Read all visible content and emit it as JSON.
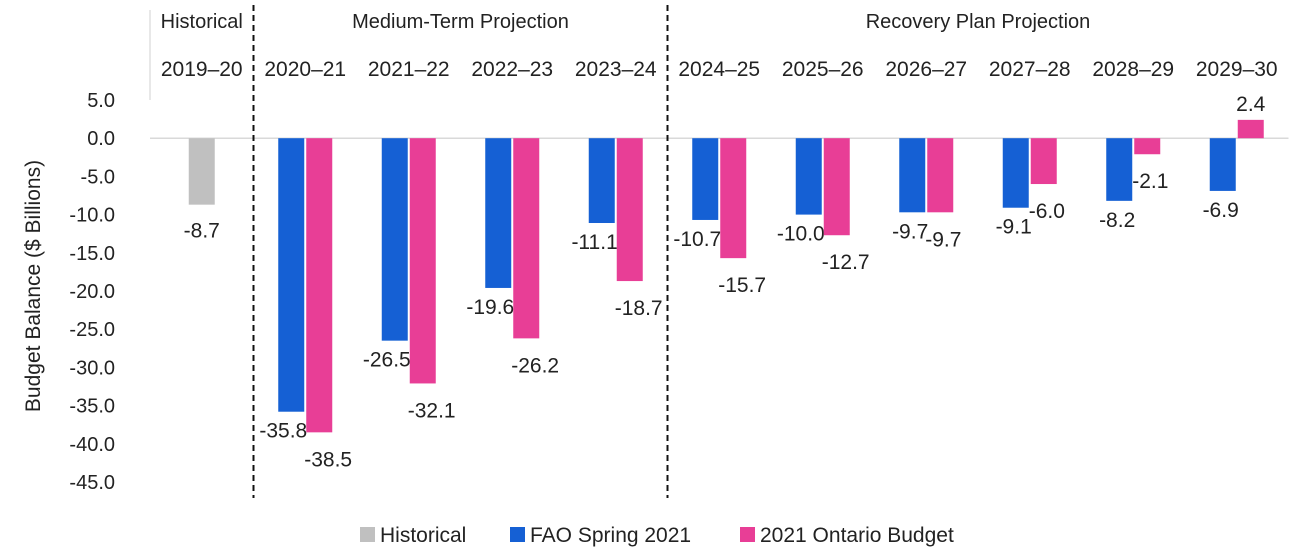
{
  "chart_data": {
    "type": "bar",
    "ylabel": "Budget Balance ($ Billions)",
    "ylim": [
      -45,
      5
    ],
    "yticks": [
      5,
      0,
      -5,
      -10,
      -15,
      -20,
      -25,
      -30,
      -35,
      -40,
      -45
    ],
    "ytick_labels": [
      "5.0",
      "0.0",
      "-5.0",
      "-10.0",
      "-15.0",
      "-20.0",
      "-25.0",
      "-30.0",
      "-35.0",
      "-40.0",
      "-45.0"
    ],
    "categories": [
      "2019–20",
      "2020–21",
      "2021–22",
      "2022–23",
      "2023–24",
      "2024–25",
      "2025–26",
      "2026–27",
      "2027–28",
      "2028–29",
      "2029–30"
    ],
    "sections": [
      {
        "label": "Historical",
        "from": 0,
        "to": 0
      },
      {
        "label": "Medium-Term Projection",
        "from": 1,
        "to": 4
      },
      {
        "label": "Recovery Plan Projection",
        "from": 5,
        "to": 10
      }
    ],
    "series": [
      {
        "name": "Historical",
        "color": "#c0c0c0",
        "values": [
          -8.7,
          null,
          null,
          null,
          null,
          null,
          null,
          null,
          null,
          null,
          null
        ],
        "labels": [
          "-8.7",
          null,
          null,
          null,
          null,
          null,
          null,
          null,
          null,
          null,
          null
        ]
      },
      {
        "name": "FAO Spring 2021",
        "color": "#1560d4",
        "values": [
          null,
          -35.8,
          -26.5,
          -19.6,
          -11.1,
          -10.7,
          -10.0,
          -9.7,
          -9.1,
          -8.2,
          -6.9
        ],
        "labels": [
          null,
          "-35.8",
          "-26.5",
          "-19.6",
          "-11.1",
          "-10.7",
          "-10.0",
          "-9.7",
          "-9.1",
          "-8.2",
          "-6.9"
        ]
      },
      {
        "name": "2021 Ontario Budget",
        "color": "#e83e96",
        "values": [
          null,
          -38.5,
          -32.1,
          -26.2,
          -18.7,
          -15.7,
          -12.7,
          -9.7,
          -6.0,
          -2.1,
          2.4
        ],
        "labels": [
          null,
          "-38.5",
          "-32.1",
          "-26.2",
          "-18.7",
          "-15.7",
          "-12.7",
          "-9.7",
          "-6.0",
          "-2.1",
          "2.4"
        ]
      }
    ],
    "legend": {
      "position": "bottom",
      "items": [
        "Historical",
        "FAO Spring 2021",
        "2021 Ontario Budget"
      ]
    },
    "grid": false
  }
}
